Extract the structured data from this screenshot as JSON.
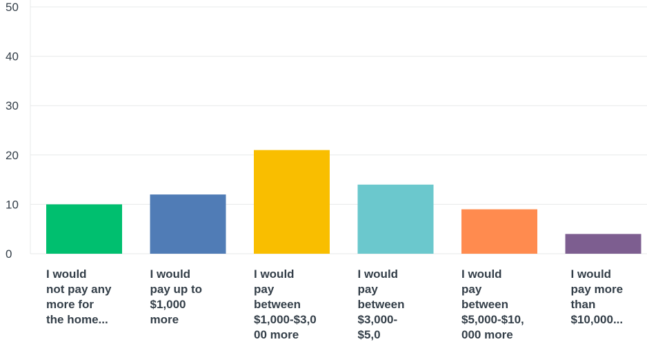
{
  "chart_data": {
    "type": "bar",
    "categories": [
      "I would not pay any more for the home...",
      "I would pay up to $1,000 more",
      "I would pay between $1,000-$3,000 more",
      "I would pay between $3,000-$5,0",
      "I would pay between $5,000-$10,000 more",
      "I would pay more than $10,000..."
    ],
    "category_lines": [
      [
        "I would",
        "not pay any",
        "more for",
        "the home..."
      ],
      [
        "I would",
        "pay up to",
        "$1,000",
        "more"
      ],
      [
        "I would",
        "pay",
        "between",
        "$1,000-$3,0",
        "00 more"
      ],
      [
        "I would",
        "pay",
        "between",
        "$3,000-",
        "$5,0"
      ],
      [
        "I would",
        "pay",
        "between",
        "$5,000-$10,",
        "000 more"
      ],
      [
        "I would",
        "pay more",
        "than",
        "$10,000..."
      ]
    ],
    "values": [
      10,
      12,
      21,
      14,
      9,
      4
    ],
    "colors": [
      "#00bf6f",
      "#507cb6",
      "#f9be00",
      "#6bc8cd",
      "#ff8b4f",
      "#7d5e90"
    ],
    "ylim": [
      0,
      50
    ],
    "yticks": [
      "0",
      "10",
      "20",
      "30",
      "40",
      "50"
    ],
    "grid": true,
    "title": "",
    "xlabel": "",
    "ylabel": ""
  }
}
